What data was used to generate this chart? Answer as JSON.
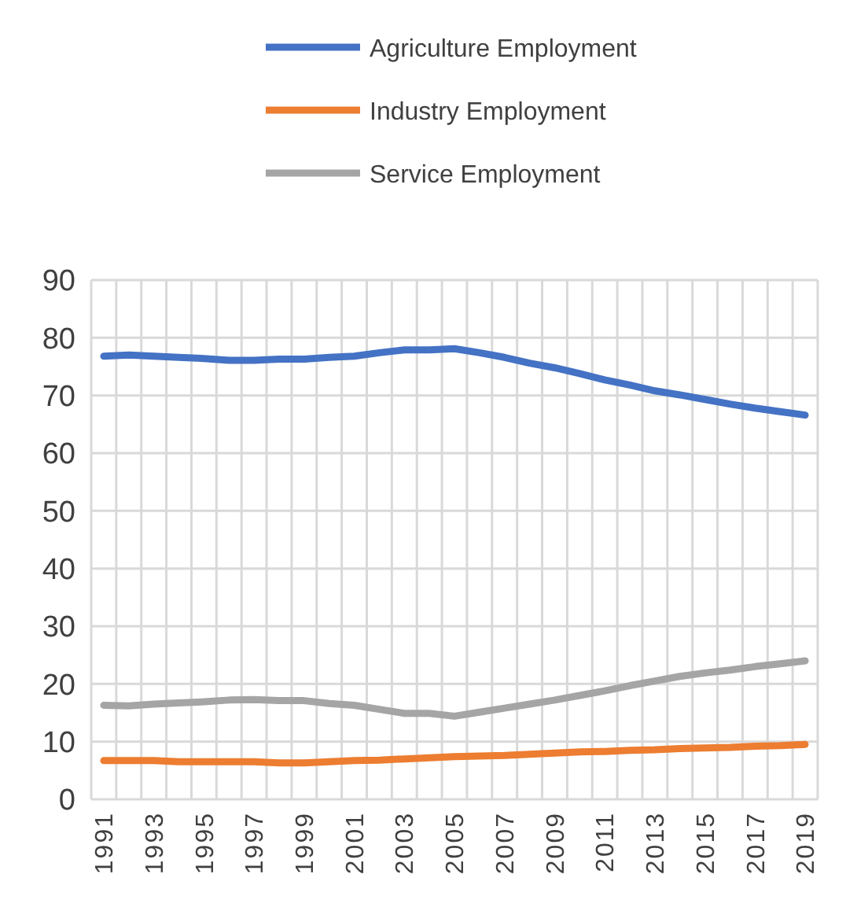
{
  "chart_data": {
    "type": "line",
    "categories": [
      "1991",
      null,
      "1993",
      null,
      "1995",
      null,
      "1997",
      null,
      "1999",
      null,
      "2001",
      null,
      "2003",
      null,
      "2005",
      null,
      "2007",
      null,
      "2009",
      null,
      "2011",
      null,
      "2013",
      null,
      "2015",
      null,
      "2017",
      null,
      "2019"
    ],
    "series": [
      {
        "name": "Agriculture Employment",
        "color": "#4472c4",
        "values": [
          76.8,
          77.0,
          76.8,
          76.6,
          76.4,
          76.1,
          76.1,
          76.3,
          76.3,
          76.6,
          76.8,
          77.4,
          77.9,
          77.9,
          78.1,
          77.4,
          76.6,
          75.6,
          74.8,
          73.8,
          72.7,
          71.8,
          70.8,
          70.1,
          69.3,
          68.5,
          67.8,
          67.2,
          66.6
        ]
      },
      {
        "name": "Industry Employment",
        "color": "#ed7d31",
        "values": [
          6.7,
          6.7,
          6.7,
          6.5,
          6.5,
          6.5,
          6.5,
          6.3,
          6.3,
          6.5,
          6.7,
          6.8,
          7.0,
          7.2,
          7.4,
          7.5,
          7.6,
          7.8,
          8.0,
          8.2,
          8.3,
          8.5,
          8.6,
          8.8,
          8.9,
          9.0,
          9.2,
          9.3,
          9.5
        ]
      },
      {
        "name": "Service Employment",
        "color": "#a5a5a5",
        "values": [
          16.3,
          16.2,
          16.5,
          16.7,
          16.9,
          17.2,
          17.3,
          17.1,
          17.1,
          16.6,
          16.3,
          15.6,
          14.9,
          14.9,
          14.4,
          15.1,
          15.8,
          16.5,
          17.2,
          18.0,
          18.8,
          19.7,
          20.5,
          21.3,
          21.9,
          22.4,
          23.0,
          23.5,
          24.0
        ]
      }
    ],
    "ylim": [
      0,
      90
    ],
    "yticks": [
      0,
      10,
      20,
      30,
      40,
      50,
      60,
      70,
      80,
      90
    ],
    "grid": true,
    "legend": "top",
    "marker": "none",
    "line_style": "solid"
  }
}
